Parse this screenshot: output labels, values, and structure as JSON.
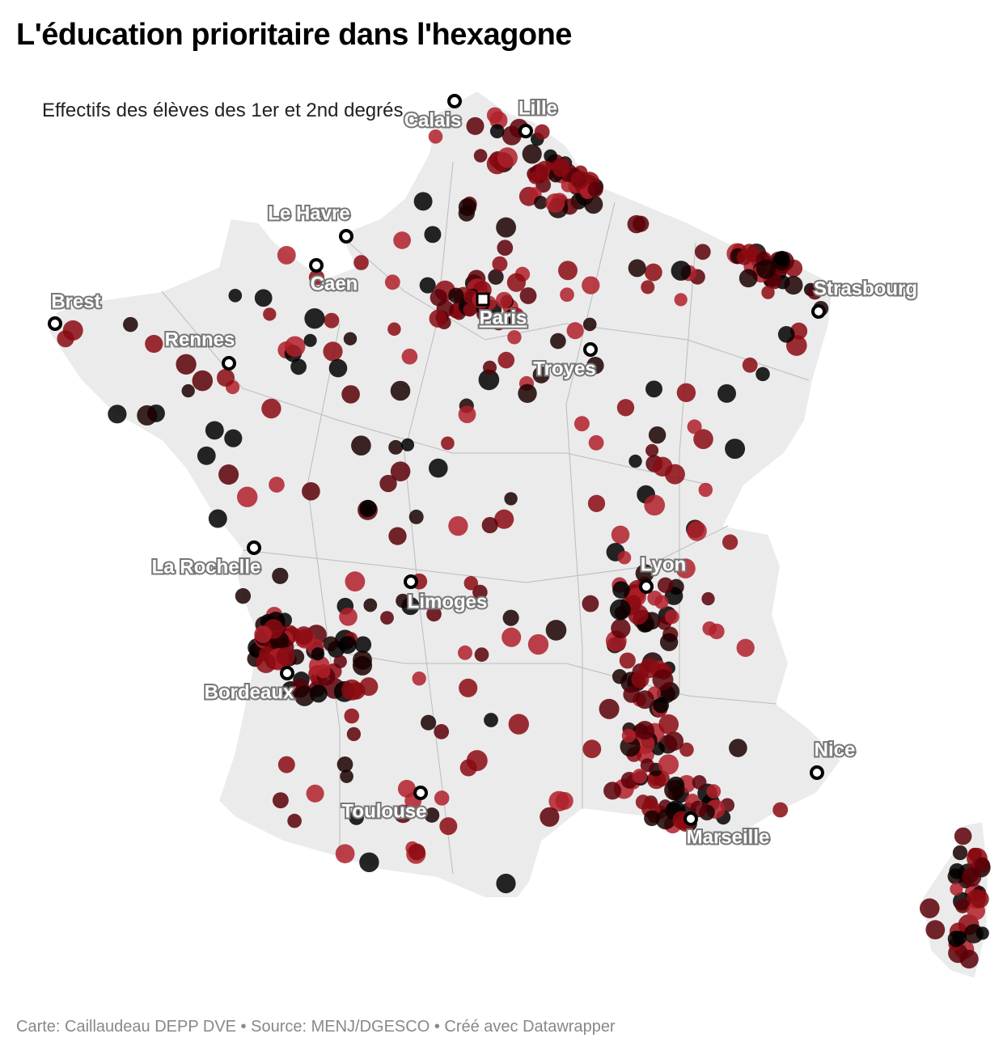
{
  "title": "L'éducation prioritaire dans l'hexagone",
  "legend_label": "Effectifs des élèves des 1er et 2nd degrés",
  "cities": [
    {
      "label": "Calais"
    },
    {
      "label": "Lille"
    },
    {
      "label": "Le Havre"
    },
    {
      "label": "Caen"
    },
    {
      "label": "Paris"
    },
    {
      "label": "Brest"
    },
    {
      "label": "Rennes"
    },
    {
      "label": "Strasbourg"
    },
    {
      "label": "Troyes"
    },
    {
      "label": "La Rochelle"
    },
    {
      "label": "Limoges"
    },
    {
      "label": "Lyon"
    },
    {
      "label": "Bordeaux"
    },
    {
      "label": "Nice"
    },
    {
      "label": "Toulouse"
    },
    {
      "label": "Marseille"
    }
  ],
  "footer": "Carte: Caillaudeau DEPP DVE • Source: MENJ/DGESCO • Créé avec Datawrapper"
}
